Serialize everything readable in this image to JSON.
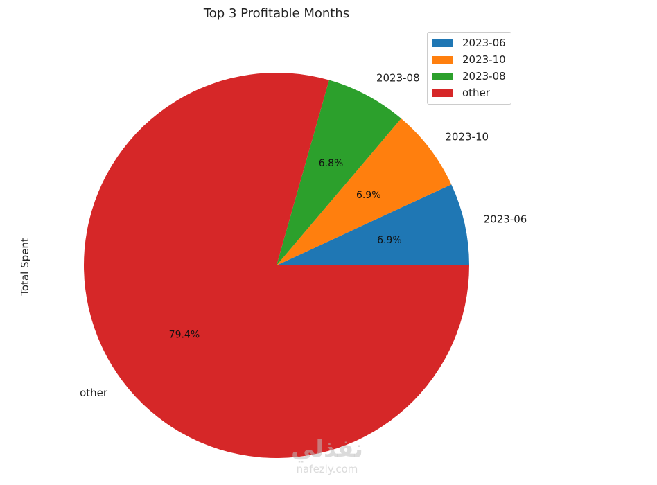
{
  "chart_data": {
    "type": "pie",
    "title": "Top 3 Profitable Months",
    "ylabel": "Total Spent",
    "slices": [
      {
        "label": "2023-06",
        "value": 6.9,
        "pct_label": "6.9%",
        "color": "#1f77b4"
      },
      {
        "label": "2023-10",
        "value": 6.9,
        "pct_label": "6.9%",
        "color": "#ff7f0e"
      },
      {
        "label": "2023-08",
        "value": 6.8,
        "pct_label": "6.8%",
        "color": "#2ca02c"
      },
      {
        "label": "other",
        "value": 79.4,
        "pct_label": "79.4%",
        "color": "#d62728"
      }
    ],
    "legend": {
      "placement": "top-right",
      "entries": [
        "2023-06",
        "2023-10",
        "2023-08",
        "other"
      ]
    }
  },
  "watermark": {
    "main": "نفذلي",
    "sub": "nafezly.com"
  }
}
